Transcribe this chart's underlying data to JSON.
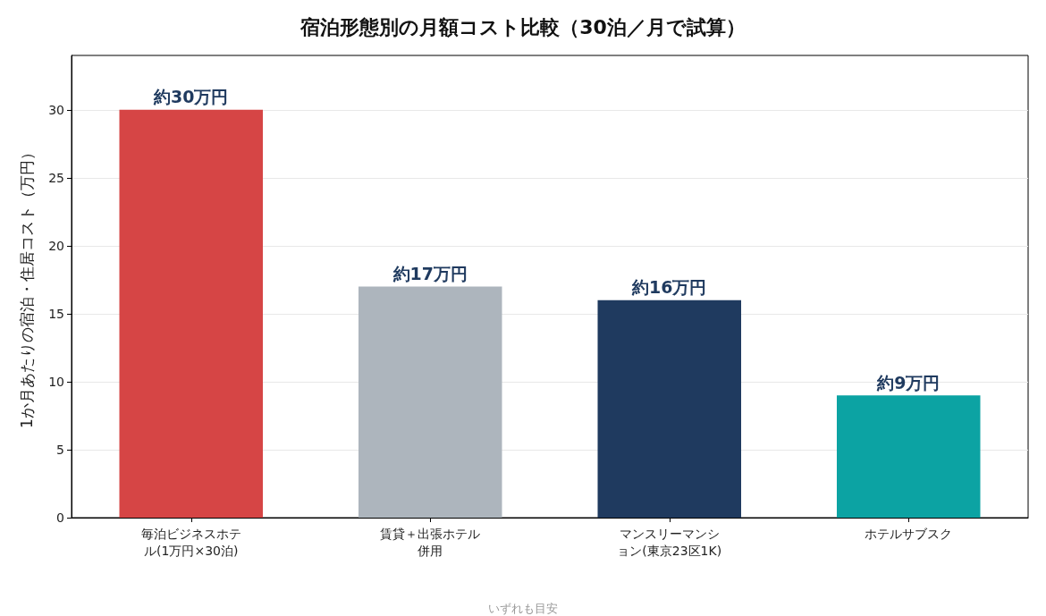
{
  "chart_data": {
    "type": "bar",
    "title": "宿泊形態別の月額コスト比較（30泊／月で試算）",
    "ylabel": "1か月あたりの宿泊・住居コスト（万円）",
    "categories": [
      "毎泊ビジネスホテル(1万円×30泊)",
      "賃貸＋出張ホテル併用",
      "マンスリーマンション(東京23区1K)",
      "ホテルサブスク"
    ],
    "values": [
      30,
      17,
      16,
      9
    ],
    "colors": [
      "#d64545",
      "#adb5bd",
      "#1f3a5f",
      "#0ca3a3"
    ],
    "value_labels": [
      "約30万円",
      "約17万円",
      "約16万円",
      "約9万円"
    ],
    "ylim": [
      0,
      34
    ],
    "yticks": [
      0,
      5,
      10,
      15,
      20,
      25,
      30
    ],
    "grid": "y",
    "annotations": [
      "いずれも目安"
    ]
  }
}
